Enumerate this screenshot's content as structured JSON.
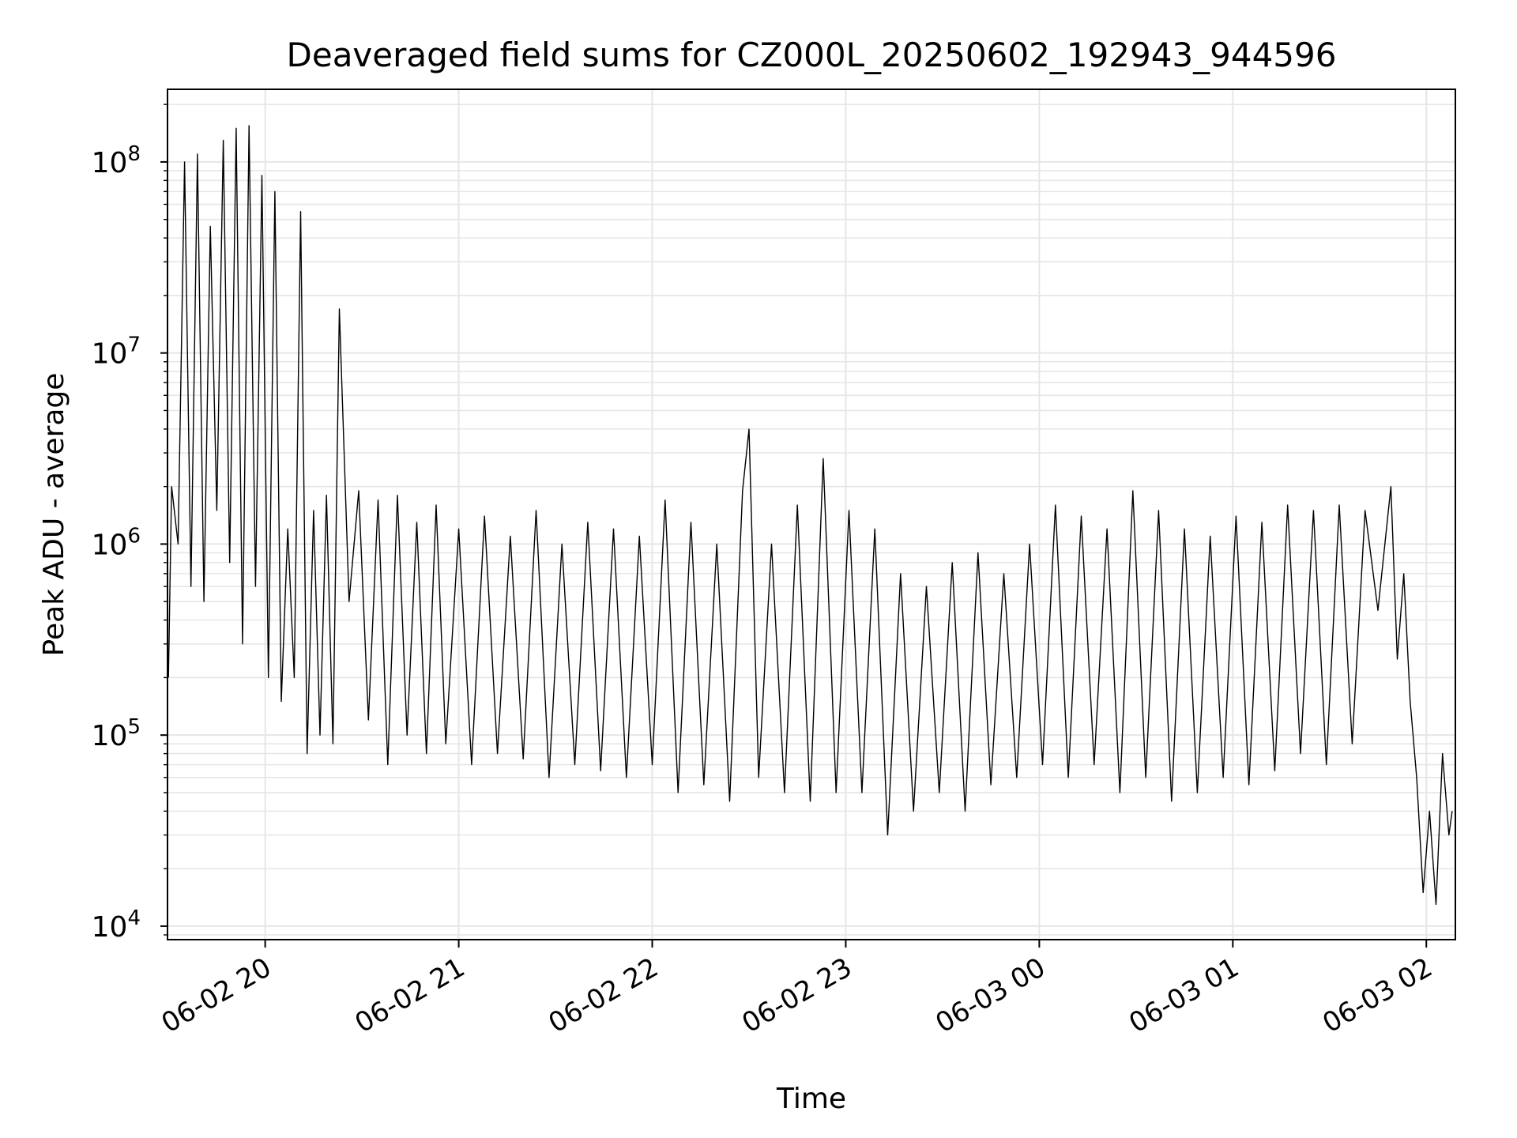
{
  "chart_data": {
    "type": "line",
    "title": "Deaveraged field sums for CZ000L_20250602_192943_944596",
    "xlabel": "Time",
    "ylabel": "Peak ADU - average",
    "yscale": "log",
    "ylim": [
      8500,
      240000000
    ],
    "xlim": [
      "2025-06-02 19:29:43",
      "2025-06-03 02:09:00"
    ],
    "x_ticks": [
      {
        "t": "2025-06-02 20:00",
        "label": "06-02 20"
      },
      {
        "t": "2025-06-02 21:00",
        "label": "06-02 21"
      },
      {
        "t": "2025-06-02 22:00",
        "label": "06-02 22"
      },
      {
        "t": "2025-06-02 23:00",
        "label": "06-02 23"
      },
      {
        "t": "2025-06-03 00:00",
        "label": "06-03 00"
      },
      {
        "t": "2025-06-03 01:00",
        "label": "06-03 01"
      },
      {
        "t": "2025-06-03 02:00",
        "label": "06-03 02"
      }
    ],
    "y_ticks": [
      {
        "value": 10000,
        "base": "10",
        "exp": "4"
      },
      {
        "value": 100000,
        "base": "10",
        "exp": "5"
      },
      {
        "value": 1000000,
        "base": "10",
        "exp": "6"
      },
      {
        "value": 10000000,
        "base": "10",
        "exp": "7"
      },
      {
        "value": 100000000,
        "base": "10",
        "exp": "8"
      }
    ],
    "grid": true,
    "line_color": "#000000",
    "grid_color": "#e6e6e6",
    "series": [
      {
        "x": [
          "2025-06-02 19:30",
          "2025-06-02 19:31",
          "2025-06-02 19:33",
          "2025-06-02 19:35",
          "2025-06-02 19:37",
          "2025-06-02 19:39",
          "2025-06-02 19:41",
          "2025-06-02 19:43",
          "2025-06-02 19:45",
          "2025-06-02 19:47",
          "2025-06-02 19:49",
          "2025-06-02 19:51",
          "2025-06-02 19:53",
          "2025-06-02 19:55",
          "2025-06-02 19:57",
          "2025-06-02 19:59",
          "2025-06-02 20:01",
          "2025-06-02 20:03",
          "2025-06-02 20:05",
          "2025-06-02 20:07",
          "2025-06-02 20:09",
          "2025-06-02 20:11",
          "2025-06-02 20:13",
          "2025-06-02 20:15",
          "2025-06-02 20:17",
          "2025-06-02 20:19",
          "2025-06-02 20:21",
          "2025-06-02 20:23",
          "2025-06-02 20:26",
          "2025-06-02 20:29",
          "2025-06-02 20:32",
          "2025-06-02 20:35",
          "2025-06-02 20:38",
          "2025-06-02 20:41",
          "2025-06-02 20:44",
          "2025-06-02 20:47",
          "2025-06-02 20:50",
          "2025-06-02 20:53",
          "2025-06-02 20:56",
          "2025-06-02 21:00",
          "2025-06-02 21:04",
          "2025-06-02 21:08",
          "2025-06-02 21:12",
          "2025-06-02 21:16",
          "2025-06-02 21:20",
          "2025-06-02 21:24",
          "2025-06-02 21:28",
          "2025-06-02 21:32",
          "2025-06-02 21:36",
          "2025-06-02 21:40",
          "2025-06-02 21:44",
          "2025-06-02 21:48",
          "2025-06-02 21:52",
          "2025-06-02 21:56",
          "2025-06-02 22:00",
          "2025-06-02 22:04",
          "2025-06-02 22:08",
          "2025-06-02 22:12",
          "2025-06-02 22:16",
          "2025-06-02 22:20",
          "2025-06-02 22:24",
          "2025-06-02 22:28",
          "2025-06-02 22:30",
          "2025-06-02 22:33",
          "2025-06-02 22:37",
          "2025-06-02 22:41",
          "2025-06-02 22:45",
          "2025-06-02 22:49",
          "2025-06-02 22:53",
          "2025-06-02 22:57",
          "2025-06-02 23:01",
          "2025-06-02 23:05",
          "2025-06-02 23:09",
          "2025-06-02 23:13",
          "2025-06-02 23:17",
          "2025-06-02 23:21",
          "2025-06-02 23:25",
          "2025-06-02 23:29",
          "2025-06-02 23:33",
          "2025-06-02 23:37",
          "2025-06-02 23:41",
          "2025-06-02 23:45",
          "2025-06-02 23:49",
          "2025-06-02 23:53",
          "2025-06-02 23:57",
          "2025-06-03 00:01",
          "2025-06-03 00:05",
          "2025-06-03 00:09",
          "2025-06-03 00:13",
          "2025-06-03 00:17",
          "2025-06-03 00:21",
          "2025-06-03 00:25",
          "2025-06-03 00:29",
          "2025-06-03 00:33",
          "2025-06-03 00:37",
          "2025-06-03 00:41",
          "2025-06-03 00:45",
          "2025-06-03 00:49",
          "2025-06-03 00:53",
          "2025-06-03 00:57",
          "2025-06-03 01:01",
          "2025-06-03 01:05",
          "2025-06-03 01:09",
          "2025-06-03 01:13",
          "2025-06-03 01:17",
          "2025-06-03 01:21",
          "2025-06-03 01:25",
          "2025-06-03 01:29",
          "2025-06-03 01:33",
          "2025-06-03 01:37",
          "2025-06-03 01:41",
          "2025-06-03 01:45",
          "2025-06-03 01:49",
          "2025-06-03 01:51",
          "2025-06-03 01:53",
          "2025-06-03 01:55",
          "2025-06-03 01:57",
          "2025-06-03 01:59",
          "2025-06-03 02:01",
          "2025-06-03 02:03",
          "2025-06-03 02:05",
          "2025-06-03 02:07",
          "2025-06-03 02:08"
        ],
        "y": [
          200000,
          2000000,
          1000000,
          100000000,
          600000,
          110000000,
          500000,
          46000000,
          1500000,
          130000000,
          800000,
          150000000,
          300000,
          155000000,
          600000,
          85000000,
          200000,
          70000000,
          150000,
          1200000,
          200000,
          55000000,
          80000,
          1500000,
          100000,
          1800000,
          90000,
          17000000,
          500000,
          1900000,
          120000,
          1700000,
          70000,
          1800000,
          100000,
          1300000,
          80000,
          1600000,
          90000,
          1200000,
          70000,
          1400000,
          80000,
          1100000,
          75000,
          1500000,
          60000,
          1000000,
          70000,
          1300000,
          65000,
          1200000,
          60000,
          1100000,
          70000,
          1700000,
          50000,
          1300000,
          55000,
          1000000,
          45000,
          1900000,
          4000000,
          60000,
          1000000,
          50000,
          1600000,
          45000,
          2800000,
          50000,
          1500000,
          50000,
          1200000,
          30000,
          700000,
          40000,
          600000,
          50000,
          800000,
          40000,
          900000,
          55000,
          700000,
          60000,
          1000000,
          70000,
          1600000,
          60000,
          1400000,
          70000,
          1200000,
          50000,
          1900000,
          60000,
          1500000,
          45000,
          1200000,
          50000,
          1100000,
          60000,
          1400000,
          55000,
          1300000,
          65000,
          1600000,
          80000,
          1500000,
          70000,
          1600000,
          90000,
          1500000,
          450000,
          2000000,
          250000,
          700000,
          150000,
          60000,
          15000,
          40000,
          13000,
          80000,
          30000,
          40000
        ]
      }
    ]
  }
}
